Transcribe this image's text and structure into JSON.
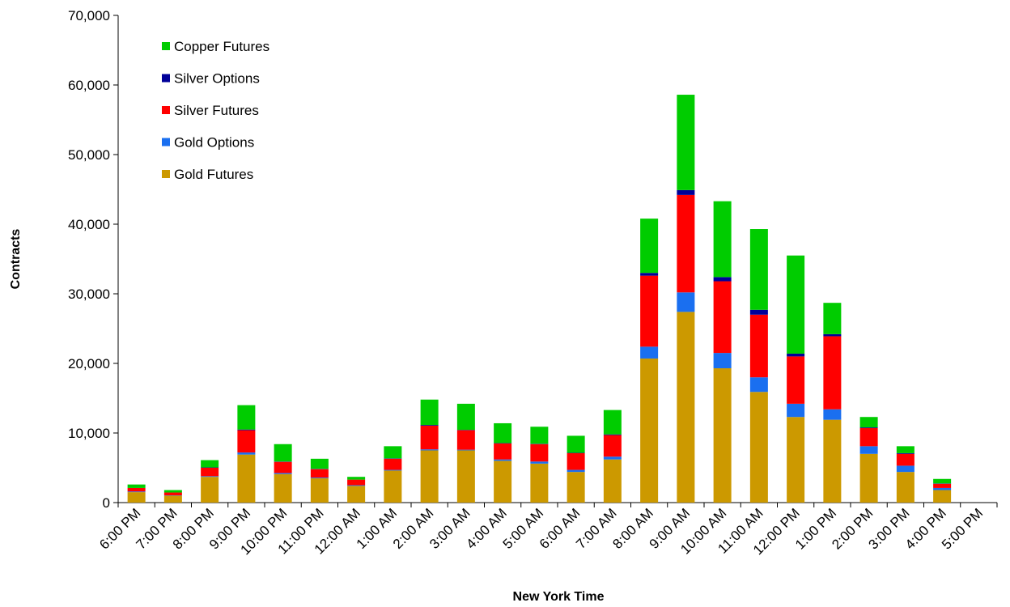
{
  "chart_data": {
    "type": "bar",
    "stacked": true,
    "x_label": "New York Time",
    "y_label": "Contracts",
    "categories": [
      "6:00 PM",
      "7:00 PM",
      "8:00 PM",
      "9:00 PM",
      "10:00 PM",
      "11:00 PM",
      "12:00 AM",
      "1:00 AM",
      "2:00 AM",
      "3:00 AM",
      "4:00 AM",
      "5:00 AM",
      "6:00 AM",
      "7:00 AM",
      "8:00 AM",
      "9:00 AM",
      "10:00 AM",
      "11:00 AM",
      "12:00 PM",
      "1:00 PM",
      "2:00 PM",
      "3:00 PM",
      "4:00 PM",
      "5:00 PM"
    ],
    "series": [
      {
        "name": "Gold Futures",
        "color": "#cc9900",
        "values": [
          1500,
          1000,
          3700,
          6900,
          4100,
          3500,
          2400,
          4600,
          7500,
          7500,
          6000,
          5600,
          4400,
          6200,
          20700,
          27400,
          19300,
          15900,
          12300,
          11900,
          7000,
          4400,
          1800,
          0
        ]
      },
      {
        "name": "Gold Options",
        "color": "#1a6ff0",
        "values": [
          100,
          50,
          100,
          300,
          150,
          100,
          100,
          100,
          150,
          100,
          200,
          300,
          300,
          400,
          1700,
          2800,
          2200,
          2100,
          1900,
          1500,
          1100,
          900,
          300,
          0
        ]
      },
      {
        "name": "Silver Futures",
        "color": "#ff0000",
        "values": [
          500,
          400,
          1200,
          3200,
          1600,
          1200,
          800,
          1600,
          3400,
          2800,
          2300,
          2500,
          2400,
          3100,
          10200,
          14000,
          10300,
          9000,
          6800,
          10500,
          2600,
          1700,
          600,
          0
        ]
      },
      {
        "name": "Silver Options",
        "color": "#000099",
        "values": [
          0,
          0,
          50,
          100,
          50,
          50,
          0,
          50,
          100,
          50,
          50,
          50,
          50,
          100,
          400,
          700,
          600,
          700,
          400,
          300,
          100,
          100,
          50,
          0
        ]
      },
      {
        "name": "Copper Futures",
        "color": "#00cc00",
        "values": [
          500,
          350,
          1050,
          3500,
          2500,
          1450,
          400,
          1750,
          3650,
          3750,
          2850,
          2450,
          2450,
          3500,
          7800,
          13700,
          10900,
          11600,
          14100,
          4500,
          1500,
          1000,
          650,
          0
        ]
      }
    ],
    "ylim": [
      0,
      70000
    ],
    "yticks": [
      0,
      {
        "value": 10000,
        "label": "10,000"
      },
      {
        "value": 20000,
        "label": "20,000"
      },
      {
        "value": 30000,
        "label": "30,000"
      },
      {
        "value": 40000,
        "label": "40,000"
      },
      {
        "value": 50000,
        "label": "50,000"
      },
      {
        "value": 60000,
        "label": "60,000"
      },
      {
        "value": 70000,
        "label": "70,000"
      }
    ],
    "legend": "upper left",
    "grid": false
  }
}
